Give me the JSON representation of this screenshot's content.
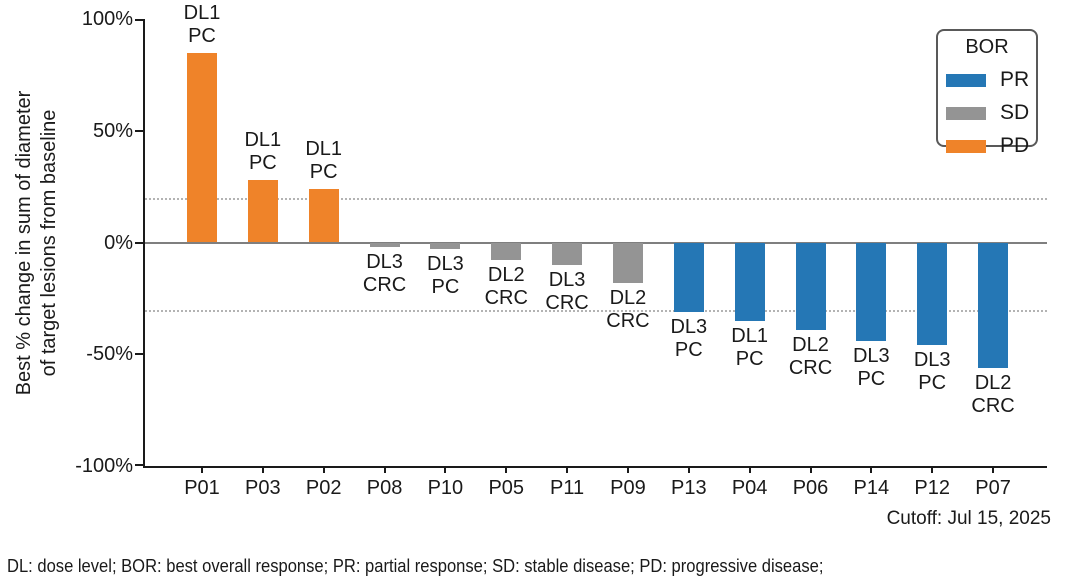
{
  "figure": {
    "ylabel_line1": "Best % change in sum of diameter",
    "ylabel_line2": "of target lesions from baseline",
    "cutoff": "Cutoff: Jul 15, 2025",
    "footnote": "DL: dose level; BOR: best overall response; PR: partial response; SD: stable disease; PD: progressive disease;"
  },
  "legend": {
    "title": "BOR",
    "entries": [
      {
        "label": "PR",
        "color": "#2577B5"
      },
      {
        "label": "SD",
        "color": "#949494"
      },
      {
        "label": "PD",
        "color": "#EF8329"
      }
    ]
  },
  "chart_data": {
    "type": "bar",
    "title": "",
    "ylabel": "Best % change in sum of diameter of target lesions from baseline",
    "xlabel": "",
    "ylim": [
      -100,
      100
    ],
    "yticks": [
      100,
      50,
      0,
      -50,
      -100
    ],
    "ytick_labels": [
      "100%",
      "50%",
      "0%",
      "-50%",
      "-100%"
    ],
    "reference_lines": [
      20,
      -30
    ],
    "legend_position": "top-right",
    "grid": false,
    "categories": [
      "P01",
      "P03",
      "P02",
      "P08",
      "P10",
      "P05",
      "P11",
      "P09",
      "P13",
      "P04",
      "P06",
      "P14",
      "P12",
      "P07"
    ],
    "bars": [
      {
        "patient": "P01",
        "value": 85,
        "bor": "PD",
        "dose": "DL1",
        "tumor": "PC"
      },
      {
        "patient": "P03",
        "value": 28,
        "bor": "PD",
        "dose": "DL1",
        "tumor": "PC"
      },
      {
        "patient": "P02",
        "value": 24,
        "bor": "PD",
        "dose": "DL1",
        "tumor": "PC"
      },
      {
        "patient": "P08",
        "value": -2,
        "bor": "SD",
        "dose": "DL3",
        "tumor": "CRC"
      },
      {
        "patient": "P10",
        "value": -3,
        "bor": "SD",
        "dose": "DL3",
        "tumor": "PC"
      },
      {
        "patient": "P05",
        "value": -8,
        "bor": "SD",
        "dose": "DL2",
        "tumor": "CRC"
      },
      {
        "patient": "P11",
        "value": -10,
        "bor": "SD",
        "dose": "DL3",
        "tumor": "CRC"
      },
      {
        "patient": "P09",
        "value": -18,
        "bor": "SD",
        "dose": "DL2",
        "tumor": "CRC"
      },
      {
        "patient": "P13",
        "value": -31,
        "bor": "PR",
        "dose": "DL3",
        "tumor": "PC"
      },
      {
        "patient": "P04",
        "value": -35,
        "bor": "PR",
        "dose": "DL1",
        "tumor": "PC"
      },
      {
        "patient": "P06",
        "value": -39,
        "bor": "PR",
        "dose": "DL2",
        "tumor": "CRC"
      },
      {
        "patient": "P14",
        "value": -44,
        "bor": "PR",
        "dose": "DL3",
        "tumor": "PC"
      },
      {
        "patient": "P12",
        "value": -46,
        "bor": "PR",
        "dose": "DL3",
        "tumor": "PC"
      },
      {
        "patient": "P07",
        "value": -56,
        "bor": "PR",
        "dose": "DL2",
        "tumor": "CRC"
      }
    ],
    "bor_colors": {
      "PR": "#2577B5",
      "SD": "#949494",
      "PD": "#EF8329"
    }
  }
}
